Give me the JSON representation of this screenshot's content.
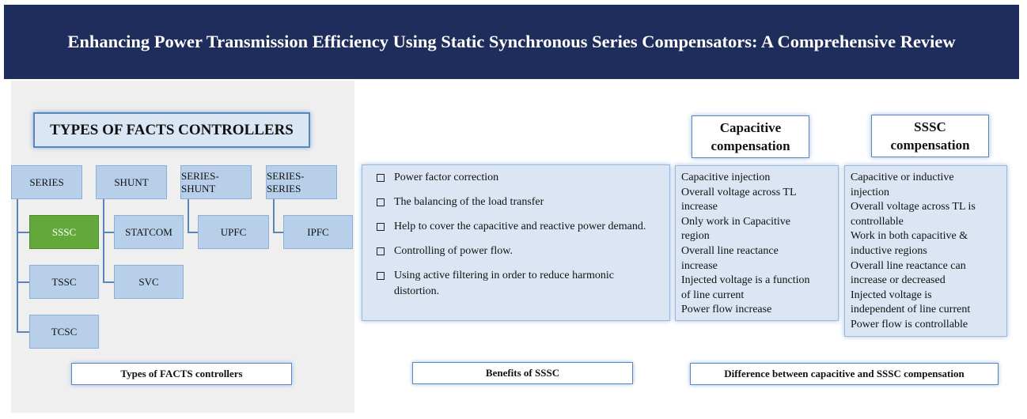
{
  "banner": {
    "title": "Enhancing Power Transmission Efficiency Using Static Synchronous Series Compensators: A Comprehensive Review"
  },
  "facts": {
    "title": "TYPES OF FACTS CONTROLLERS",
    "categories": [
      "SERIES",
      "SHUNT",
      "SERIES-SHUNT",
      "SERIES-SERIES"
    ],
    "series_items": [
      "SSSC",
      "TSSC",
      "TCSC"
    ],
    "shunt_items": [
      "STATCOM",
      "SVC"
    ],
    "series_shunt_items": [
      "UPFC"
    ],
    "series_series_items": [
      "IPFC"
    ],
    "caption": "Types  of FACTS controllers",
    "highlight_color": "#63a83b"
  },
  "benefits": {
    "items": [
      "Power factor correction",
      "The balancing  of the load transfer",
      "Help to cover the capacitive and reactive power demand.",
      "Controlling of power flow.",
      "Using active filtering in order to reduce harmonic distortion."
    ],
    "caption": "Benefits of SSSC"
  },
  "comparison": {
    "capacitive_header": [
      "Capacitive",
      "compensation"
    ],
    "sssc_header": [
      "SSSC",
      "compensation"
    ],
    "capacitive_lines": [
      "Capacitive  injection",
      "Overall voltage across TL",
      "increase",
      "Only work in Capacitive",
      "region",
      "Overall line reactance",
      "increase",
      "Injected voltage is a function",
      "of line current",
      "Power flow increase"
    ],
    "sssc_lines": [
      "Capacitive  or inductive",
      "injection",
      "Overall voltage across TL is",
      "controllable",
      "Work in both capacitive &",
      "inductive regions",
      "Overall line reactance can",
      "increase or decreased",
      "Injected voltage is",
      "independent  of line current",
      "Power flow is controllable"
    ],
    "caption": "Difference between capacitive and SSSC compensation"
  }
}
